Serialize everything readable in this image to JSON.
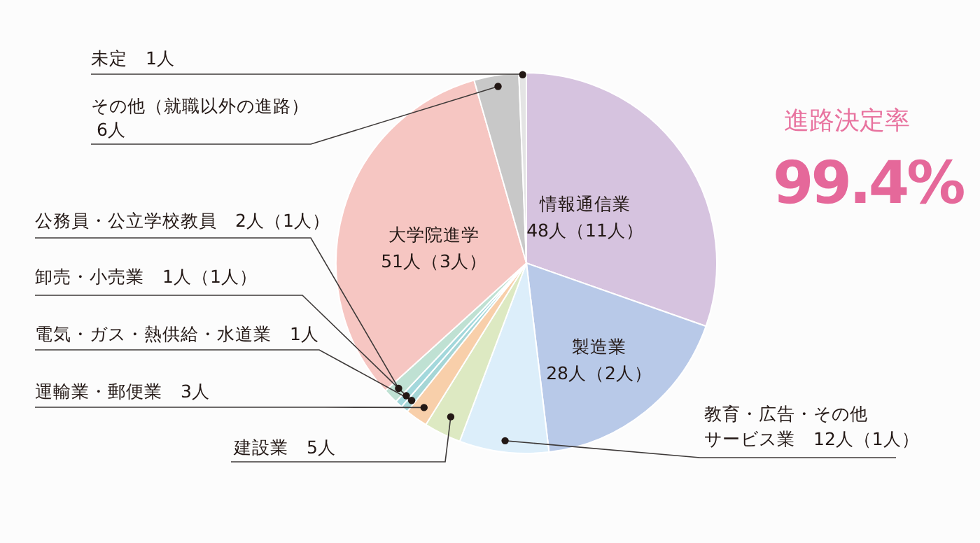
{
  "chart_data": {
    "type": "pie",
    "title": "進路決定率",
    "annotations": [
      "99.4%"
    ],
    "categories": [
      "情報通信業",
      "製造業",
      "教育・広告・その他サービス業",
      "建設業",
      "運輸業・郵便業",
      "電気・ガス・熱供給・水道業",
      "卸売・小売業",
      "公務員・公立学校教員",
      "大学院進学",
      "その他（就職以外の進路）",
      "未定"
    ],
    "values": [
      48,
      28,
      12,
      5,
      3,
      1,
      1,
      2,
      51,
      6,
      1
    ],
    "value_labels": [
      "48人（11人）",
      "28人（2人）",
      "12人（1人）",
      "5人",
      "3人",
      "1人",
      "1人（1人）",
      "2人（1人）",
      "51人（3人）",
      "6人",
      "1人"
    ],
    "colors": [
      "#d6c3df",
      "#b8c9e8",
      "#dceefa",
      "#dde9c2",
      "#f8cfaa",
      "#a6d6d6",
      "#a3d8dc",
      "#bfe1d3",
      "#f6c6c2",
      "#c8c8c8",
      "#e4e4e4"
    ]
  }
}
